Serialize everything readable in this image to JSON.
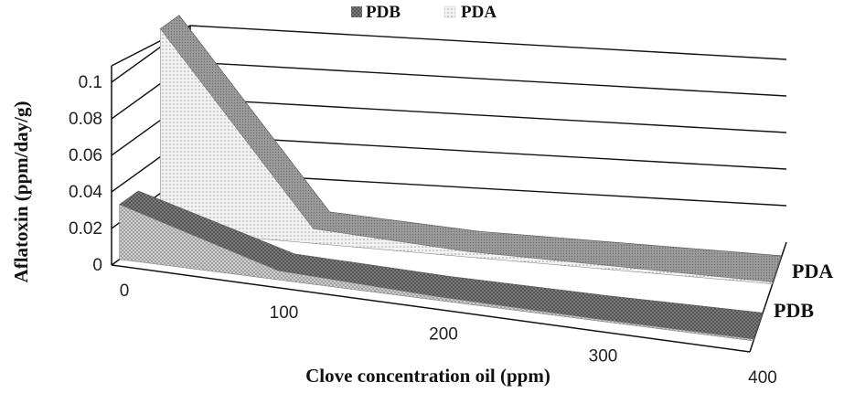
{
  "chart_data": {
    "type": "area",
    "style": "3d",
    "x": [
      0,
      100,
      200,
      300,
      400
    ],
    "xlabel": "Clove concentration oil (ppm)",
    "ylabel": "Aflatoxin (ppm/day/g)",
    "ylim": [
      0,
      0.1
    ],
    "yticks": [
      "0",
      "0.02",
      "0.04",
      "0.06",
      "0.08",
      "0.1"
    ],
    "xticks": [
      "0",
      "100",
      "200",
      "300",
      "400"
    ],
    "grid": true,
    "legend_position": "top",
    "legend": [
      "PDB",
      "PDA"
    ],
    "depth_labels": [
      "PDA",
      "PDB"
    ],
    "series": [
      {
        "name": "PDB",
        "values": [
          0.03,
          0.005,
          0.002,
          0.001,
          0.001
        ]
      },
      {
        "name": "PDA",
        "values": [
          0.11,
          0.008,
          0.003,
          0.002,
          0.001
        ]
      }
    ]
  }
}
